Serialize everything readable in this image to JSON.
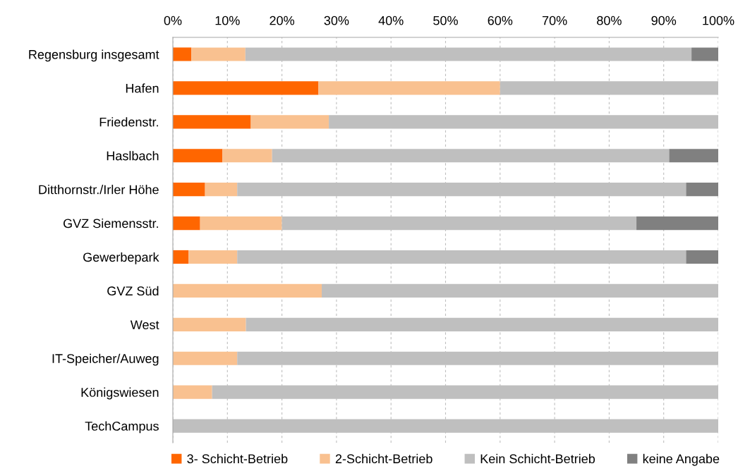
{
  "chart_data": {
    "type": "bar",
    "orientation": "horizontal",
    "stacked": true,
    "categories": [
      "Regensburg insgesamt",
      "Hafen",
      "Friedenstr.",
      "Haslbach",
      "Ditthornstr./Irler Höhe",
      "GVZ Siemensstr.",
      "Gewerbepark",
      "GVZ Süd",
      "West",
      "IT-Speicher/Auweg",
      "Königswiesen",
      "TechCampus"
    ],
    "series": [
      {
        "name": "3- Schicht-Betrieb",
        "color": "#ff6600",
        "values": [
          3.4,
          26.7,
          14.3,
          9.1,
          5.9,
          5.0,
          2.9,
          0,
          0,
          0,
          0,
          0
        ]
      },
      {
        "name": "2-Schicht-Betrieb",
        "color": "#f9c190",
        "values": [
          9.9,
          33.3,
          14.3,
          9.1,
          5.9,
          15.0,
          8.9,
          27.3,
          13.4,
          11.8,
          7.2,
          0
        ]
      },
      {
        "name": "Kein Schicht-Betrieb",
        "color": "#bfbfbf",
        "values": [
          81.8,
          40.0,
          71.4,
          72.8,
          82.3,
          65.0,
          82.3,
          72.7,
          86.6,
          88.2,
          92.8,
          100
        ]
      },
      {
        "name": "keine Angabe",
        "color": "#808080",
        "values": [
          4.9,
          0,
          0,
          9.0,
          5.9,
          15.0,
          5.9,
          0,
          0,
          0,
          0,
          0
        ]
      }
    ],
    "xlim": [
      0,
      100
    ],
    "xticks": [
      {
        "value": 0,
        "label": "0%"
      },
      {
        "value": 10,
        "label": "10%"
      },
      {
        "value": 20,
        "label": "20%"
      },
      {
        "value": 30,
        "label": "30%"
      },
      {
        "value": 40,
        "label": "40%"
      },
      {
        "value": 50,
        "label": "50%"
      },
      {
        "value": 60,
        "label": "60%"
      },
      {
        "value": 70,
        "label": "70%"
      },
      {
        "value": 80,
        "label": "80%"
      },
      {
        "value": 90,
        "label": "90%"
      },
      {
        "value": 100,
        "label": "100%"
      }
    ],
    "grid": "x",
    "legend": "bottom"
  }
}
